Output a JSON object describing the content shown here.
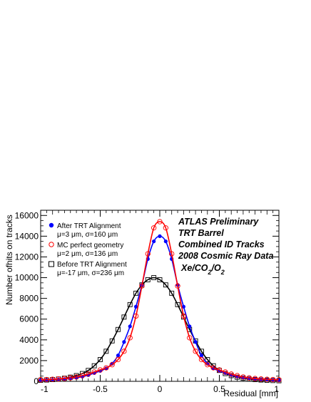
{
  "chart_data": {
    "type": "scatter",
    "xlabel": "Residual [mm]",
    "ylabel": "Number ofhits on tracks",
    "xlim": [
      -1,
      1
    ],
    "ylim": [
      0,
      16500
    ],
    "x_ticks": [
      "-1",
      "-0.5",
      "0",
      "0.5",
      "1"
    ],
    "y_ticks": [
      "0",
      "2000",
      "4000",
      "6000",
      "8000",
      "10000",
      "12000",
      "14000",
      "16000"
    ],
    "annotations": [
      "ATLAS Preliminary",
      "TRT Barrel",
      "Combined ID Tracks",
      "2008 Cosmic Ray Data",
      "Xe/CO2/O2"
    ],
    "series": [
      {
        "name": "After TRT Alignment",
        "stats": "μ=3 μm, σ=160 μm",
        "color": "#0000ff",
        "marker": "filled-circle",
        "x": [
          -1.0,
          -0.95,
          -0.9,
          -0.85,
          -0.8,
          -0.75,
          -0.7,
          -0.65,
          -0.6,
          -0.55,
          -0.5,
          -0.45,
          -0.4,
          -0.35,
          -0.3,
          -0.25,
          -0.2,
          -0.15,
          -0.1,
          -0.05,
          0.0,
          0.05,
          0.1,
          0.15,
          0.2,
          0.25,
          0.3,
          0.35,
          0.4,
          0.45,
          0.5,
          0.55,
          0.6,
          0.65,
          0.7,
          0.75,
          0.8,
          0.85,
          0.9,
          0.95,
          1.0
        ],
        "y": [
          100,
          120,
          150,
          180,
          220,
          280,
          350,
          450,
          600,
          800,
          1000,
          1250,
          1700,
          2500,
          3800,
          5300,
          7200,
          9300,
          11800,
          13500,
          14000,
          13500,
          11800,
          9300,
          7200,
          5300,
          3800,
          2500,
          1700,
          1250,
          1000,
          800,
          600,
          450,
          350,
          280,
          220,
          180,
          150,
          120,
          100
        ]
      },
      {
        "name": "MC perfect geometry",
        "stats": "μ=2 μm, σ=136 μm",
        "color": "#ff0000",
        "marker": "open-circle",
        "x": [
          -1.0,
          -0.95,
          -0.9,
          -0.85,
          -0.8,
          -0.75,
          -0.7,
          -0.65,
          -0.6,
          -0.55,
          -0.5,
          -0.45,
          -0.4,
          -0.35,
          -0.3,
          -0.25,
          -0.2,
          -0.15,
          -0.1,
          -0.05,
          0.0,
          0.05,
          0.1,
          0.15,
          0.2,
          0.25,
          0.3,
          0.35,
          0.4,
          0.45,
          0.5,
          0.55,
          0.6,
          0.65,
          0.7,
          0.75,
          0.8,
          0.85,
          0.9,
          0.95,
          1.0
        ],
        "y": [
          150,
          170,
          200,
          230,
          270,
          330,
          420,
          550,
          700,
          900,
          1100,
          1300,
          1600,
          2100,
          2900,
          4200,
          6300,
          9200,
          12300,
          14800,
          15400,
          14800,
          12300,
          9200,
          6300,
          4200,
          2900,
          2100,
          1600,
          1300,
          1100,
          900,
          700,
          550,
          420,
          330,
          270,
          230,
          200,
          170,
          150
        ]
      },
      {
        "name": "Before TRT Alignment",
        "stats": "μ=-17 μm, σ=236 μm",
        "color": "#000000",
        "marker": "open-square",
        "x": [
          -1.0,
          -0.95,
          -0.9,
          -0.85,
          -0.8,
          -0.75,
          -0.7,
          -0.65,
          -0.6,
          -0.55,
          -0.5,
          -0.45,
          -0.4,
          -0.35,
          -0.3,
          -0.25,
          -0.2,
          -0.15,
          -0.1,
          -0.05,
          0.0,
          0.05,
          0.1,
          0.15,
          0.2,
          0.25,
          0.3,
          0.35,
          0.4,
          0.45,
          0.5,
          0.55,
          0.6,
          0.65,
          0.7,
          0.75,
          0.8,
          0.85,
          0.9,
          0.95,
          1.0
        ],
        "y": [
          100,
          130,
          170,
          220,
          300,
          400,
          550,
          750,
          1050,
          1500,
          2100,
          2900,
          3900,
          5000,
          6200,
          7400,
          8500,
          9300,
          9800,
          10000,
          9800,
          9300,
          8500,
          7400,
          6200,
          5000,
          3900,
          2900,
          2100,
          1500,
          1050,
          750,
          550,
          400,
          300,
          220,
          170,
          130,
          100,
          80,
          60
        ]
      }
    ]
  }
}
